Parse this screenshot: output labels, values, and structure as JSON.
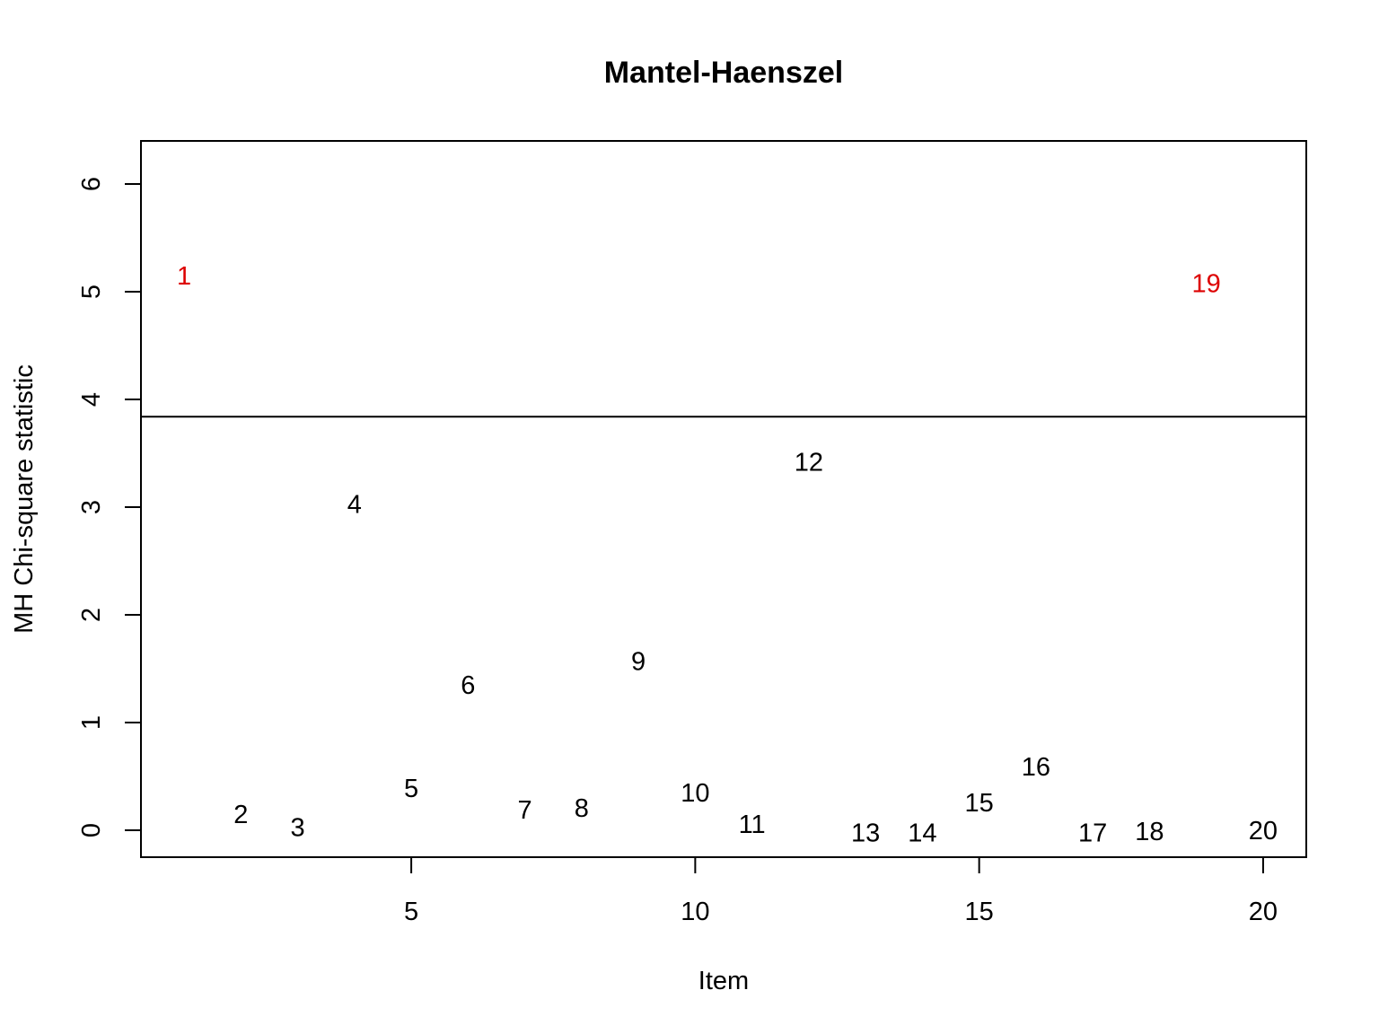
{
  "chart_data": {
    "type": "scatter",
    "title": "Mantel-Haenszel",
    "xlabel": "Item",
    "ylabel": "MH Chi-square statistic",
    "xlim": [
      0.24,
      20.76
    ],
    "ylim": [
      -0.25,
      6.4
    ],
    "xticks": [
      5,
      10,
      15,
      20
    ],
    "yticks": [
      0,
      1,
      2,
      3,
      4,
      5,
      6
    ],
    "threshold": 3.84,
    "grid": false,
    "legend": "none",
    "normal_color": "#000000",
    "flagged_color": "#dd0000",
    "points": [
      {
        "x": 1,
        "y": 5.15,
        "label": "1",
        "flagged": true
      },
      {
        "x": 2,
        "y": 0.15,
        "label": "2",
        "flagged": false
      },
      {
        "x": 3,
        "y": 0.03,
        "label": "3",
        "flagged": false
      },
      {
        "x": 4,
        "y": 3.03,
        "label": "4",
        "flagged": false
      },
      {
        "x": 5,
        "y": 0.39,
        "label": "5",
        "flagged": false
      },
      {
        "x": 6,
        "y": 1.35,
        "label": "6",
        "flagged": false
      },
      {
        "x": 7,
        "y": 0.19,
        "label": "7",
        "flagged": false
      },
      {
        "x": 8,
        "y": 0.21,
        "label": "8",
        "flagged": false
      },
      {
        "x": 9,
        "y": 1.57,
        "label": "9",
        "flagged": false
      },
      {
        "x": 10,
        "y": 0.35,
        "label": "10",
        "flagged": false
      },
      {
        "x": 11,
        "y": 0.06,
        "label": "11",
        "flagged": false
      },
      {
        "x": 12,
        "y": 3.42,
        "label": "12",
        "flagged": false
      },
      {
        "x": 13,
        "y": -0.02,
        "label": "13",
        "flagged": false
      },
      {
        "x": 14,
        "y": -0.02,
        "label": "14",
        "flagged": false
      },
      {
        "x": 15,
        "y": 0.26,
        "label": "15",
        "flagged": false
      },
      {
        "x": 16,
        "y": 0.59,
        "label": "16",
        "flagged": false
      },
      {
        "x": 17,
        "y": -0.02,
        "label": "17",
        "flagged": false
      },
      {
        "x": 18,
        "y": -0.01,
        "label": "18",
        "flagged": false
      },
      {
        "x": 19,
        "y": 5.08,
        "label": "19",
        "flagged": true
      },
      {
        "x": 20,
        "y": 0.0,
        "label": "20",
        "flagged": false
      }
    ]
  }
}
